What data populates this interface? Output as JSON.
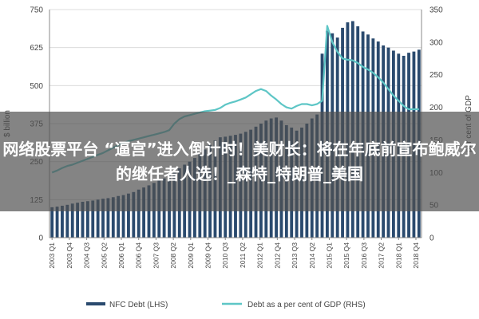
{
  "overlay": {
    "headline": "网络股票平台 “逼宫”进入倒计时！美财长：将在年底前宣布鲍威尔的继任者人选！_森特_特朗普_美国"
  },
  "colors": {
    "bar": "#2a4a6e",
    "line": "#5ec6c6",
    "grid": "#dcdcdc",
    "axis": "#888888"
  },
  "chart_data": {
    "type": "bar",
    "left_axis": {
      "label": "$ billion",
      "ylim": [
        0,
        750
      ],
      "ticks": [
        0,
        125,
        250,
        375,
        500,
        625,
        750
      ]
    },
    "right_axis": {
      "label": "per cent of GDP",
      "ylim": [
        0,
        350
      ],
      "ticks": [
        0,
        50,
        100,
        150,
        200,
        250,
        300,
        350
      ]
    },
    "x_tick_labels": [
      "2003 Q1",
      "2003 Q4",
      "2004 Q3",
      "2005 Q2",
      "2006 Q1",
      "2006 Q4",
      "2007 Q3",
      "2008 Q2",
      "2009 Q1",
      "2009 Q4",
      "2010 Q3",
      "2011 Q2",
      "2012 Q1",
      "2012 Q4",
      "2013 Q3",
      "2014 Q2",
      "2015 Q1",
      "2015 Q4",
      "2016 Q3",
      "2017 Q2",
      "2018 Q1",
      "2018 Q4"
    ],
    "series": [
      {
        "name": "NFC Debt (LHS)",
        "kind": "bar",
        "axis": "left",
        "values": [
          100,
          102,
          105,
          108,
          112,
          115,
          118,
          120,
          122,
          125,
          128,
          130,
          133,
          137,
          140,
          145,
          150,
          158,
          165,
          172,
          180,
          188,
          195,
          205,
          215,
          228,
          240,
          250,
          262,
          275,
          290,
          305,
          320,
          330,
          332,
          335,
          338,
          342,
          348,
          355,
          365,
          375,
          385,
          392,
          395,
          385,
          370,
          362,
          352,
          362,
          375,
          392,
          405,
          605,
          680,
          672,
          658,
          690,
          708,
          712,
          695,
          678,
          668,
          655,
          645,
          632,
          625,
          615,
          605,
          598,
          608,
          612,
          618
        ]
      },
      {
        "name": "Debt as a per cent of GDP (RHS)",
        "kind": "line",
        "axis": "right",
        "values": [
          100,
          103,
          107,
          110,
          112,
          115,
          118,
          121,
          124,
          127,
          130,
          134,
          138,
          142,
          145,
          148,
          150,
          152,
          154,
          156,
          158,
          160,
          162,
          165,
          175,
          182,
          186,
          188,
          190,
          192,
          194,
          195,
          196,
          199,
          204,
          207,
          209,
          212,
          215,
          220,
          225,
          228,
          225,
          218,
          212,
          205,
          200,
          198,
          202,
          205,
          205,
          203,
          205,
          210,
          325,
          300,
          285,
          275,
          273,
          272,
          268,
          262,
          258,
          253,
          246,
          238,
          228,
          218,
          210,
          202,
          197,
          197,
          197
        ]
      }
    ],
    "legend": {
      "placement": "bottom",
      "entries": [
        "NFC Debt (LHS)",
        "Debt as a per cent of GDP (RHS)"
      ]
    },
    "grid": true
  }
}
